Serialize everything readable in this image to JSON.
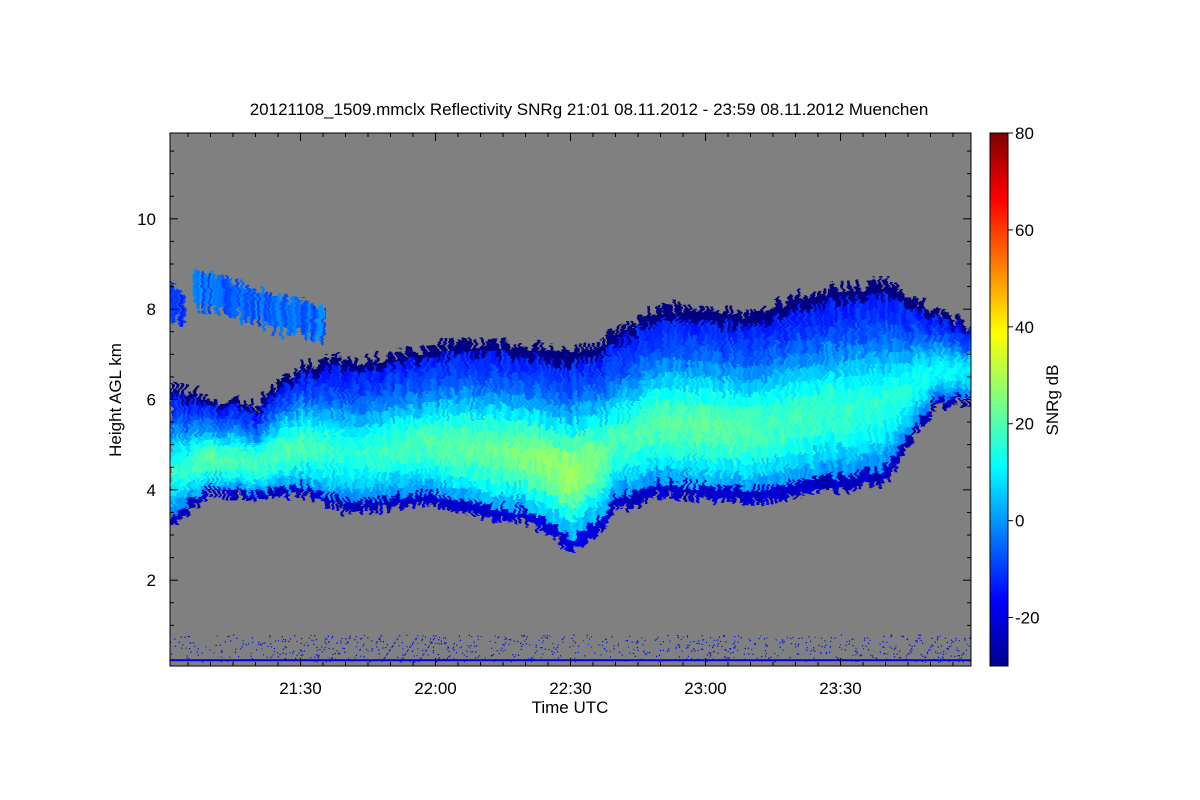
{
  "chart_data": {
    "type": "heatmap",
    "title": "20121108_1509.mmclx Reflectivity SNRg   21:01 08.11.2012 - 23:59 08.11.2012 Muenchen",
    "xlabel": "Time UTC",
    "ylabel": "Height AGL km",
    "colorbar_label": "SNRg dB",
    "x_range": [
      "21:01",
      "23:59"
    ],
    "xlim_minutes_utc": [
      1261,
      1439
    ],
    "ylim_km": [
      0.1,
      11.9
    ],
    "clim_db": [
      -30,
      80
    ],
    "x_ticks": [
      {
        "value": 1290,
        "label": "21:30"
      },
      {
        "value": 1320,
        "label": "22:00"
      },
      {
        "value": 1350,
        "label": "22:30"
      },
      {
        "value": 1380,
        "label": "23:00"
      },
      {
        "value": 1410,
        "label": "23:30"
      }
    ],
    "y_ticks": [
      {
        "value": 2,
        "label": "2"
      },
      {
        "value": 4,
        "label": "4"
      },
      {
        "value": 6,
        "label": "6"
      },
      {
        "value": 8,
        "label": "8"
      },
      {
        "value": 10,
        "label": "10"
      }
    ],
    "colorbar_ticks": [
      {
        "value": -20,
        "label": "-20"
      },
      {
        "value": 0,
        "label": "0"
      },
      {
        "value": 20,
        "label": "20"
      },
      {
        "value": 40,
        "label": "40"
      },
      {
        "value": 60,
        "label": "60"
      },
      {
        "value": 80,
        "label": "80"
      }
    ],
    "background_color": "#808080",
    "colormap": "jet",
    "cloud_layer": {
      "description_points_time_min": [
        1261,
        1270,
        1280,
        1290,
        1300,
        1310,
        1320,
        1330,
        1340,
        1350,
        1355,
        1360,
        1370,
        1380,
        1390,
        1400,
        1410,
        1420,
        1430,
        1439
      ],
      "base_km": [
        3.2,
        4.0,
        3.8,
        3.9,
        3.5,
        3.6,
        3.7,
        3.4,
        3.3,
        2.7,
        3.0,
        3.6,
        3.9,
        3.8,
        3.7,
        3.9,
        4.0,
        4.2,
        5.8,
        6.0
      ],
      "top_km": [
        6.3,
        6.0,
        5.9,
        6.8,
        6.9,
        7.0,
        7.2,
        7.3,
        7.2,
        7.1,
        7.2,
        7.5,
        8.1,
        8.0,
        7.9,
        8.3,
        8.5,
        8.6,
        8.0,
        7.6
      ],
      "peak_snr_db": [
        15,
        22,
        18,
        20,
        15,
        18,
        20,
        22,
        25,
        28,
        25,
        18,
        20,
        22,
        20,
        18,
        17,
        16,
        12,
        10
      ]
    },
    "upper_patches": [
      {
        "time_start_min": 1266,
        "time_end_min": 1295,
        "base_km": 7.6,
        "top_km": 8.9,
        "peak_snr_db": -5
      },
      {
        "time_start_min": 1261,
        "time_end_min": 1264,
        "base_km": 8.1,
        "top_km": 8.7,
        "peak_snr_db": -10
      }
    ],
    "surface_clutter_km": [
      0.2,
      0.8
    ]
  }
}
